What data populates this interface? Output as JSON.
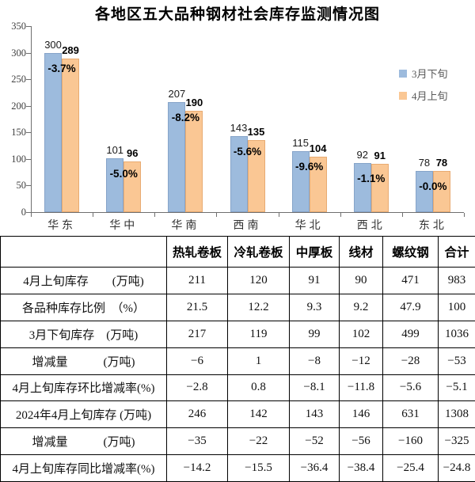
{
  "chart": {
    "title": "各地区五大品种钢材社会库存监测情况图"
  },
  "chart_data": [
    {
      "type": "bar",
      "title": "各地区五大品种钢材社会库存监测情况图",
      "categories": [
        "华东",
        "华中",
        "华南",
        "西南",
        "华北",
        "西北",
        "东北"
      ],
      "series": [
        {
          "name": "3月下旬",
          "color": "#9dbbdd",
          "values": [
            300,
            101,
            207,
            143,
            115,
            92,
            78
          ]
        },
        {
          "name": "4月上旬",
          "color": "#fac794",
          "values": [
            289,
            96,
            190,
            135,
            104,
            91,
            78
          ]
        }
      ],
      "change_labels": [
        "-3.7%",
        "-5.0%",
        "-8.2%",
        "-5.6%",
        "-9.6%",
        "-1.1%",
        "-0.0%"
      ],
      "yticks": [
        0,
        50,
        100,
        150,
        200,
        250,
        300,
        350
      ],
      "ylim": [
        0,
        350
      ],
      "grid": false,
      "legend_position": "right"
    },
    {
      "type": "table",
      "columns": [
        "",
        "热轧卷板",
        "冷轧卷板",
        "中厚板",
        "线材",
        "螺纹钢",
        "合计"
      ],
      "rows": [
        {
          "label": "4月上旬库存　　(万吨)",
          "values": [
            "211",
            "120",
            "91",
            "90",
            "471",
            "983"
          ]
        },
        {
          "label": "各品种库存比例　（%）",
          "values": [
            "21.5",
            "12.2",
            "9.3",
            "9.2",
            "47.9",
            "100"
          ]
        },
        {
          "label": "3月下旬库存　(万吨)",
          "values": [
            "217",
            "119",
            "99",
            "102",
            "499",
            "1036"
          ]
        },
        {
          "label": "增减量　　　(万吨)",
          "values": [
            "−6",
            "1",
            "−8",
            "−12",
            "−28",
            "−53"
          ]
        },
        {
          "label": "4月上旬库存环比增减率(%)",
          "values": [
            "−2.8",
            "0.8",
            "−8.1",
            "−11.8",
            "−5.6",
            "−5.1"
          ]
        },
        {
          "label": "2024年4月上旬库存 (万吨)",
          "values": [
            "246",
            "142",
            "143",
            "146",
            "631",
            "1308"
          ]
        },
        {
          "label": "增减量　　　(万吨)",
          "values": [
            "−35",
            "−22",
            "−52",
            "−56",
            "−160",
            "−325"
          ]
        },
        {
          "label": "4月上旬库存同比增减率(%)",
          "values": [
            "−14.2",
            "−15.5",
            "−36.4",
            "−38.4",
            "−25.4",
            "−24.8"
          ]
        }
      ]
    }
  ]
}
